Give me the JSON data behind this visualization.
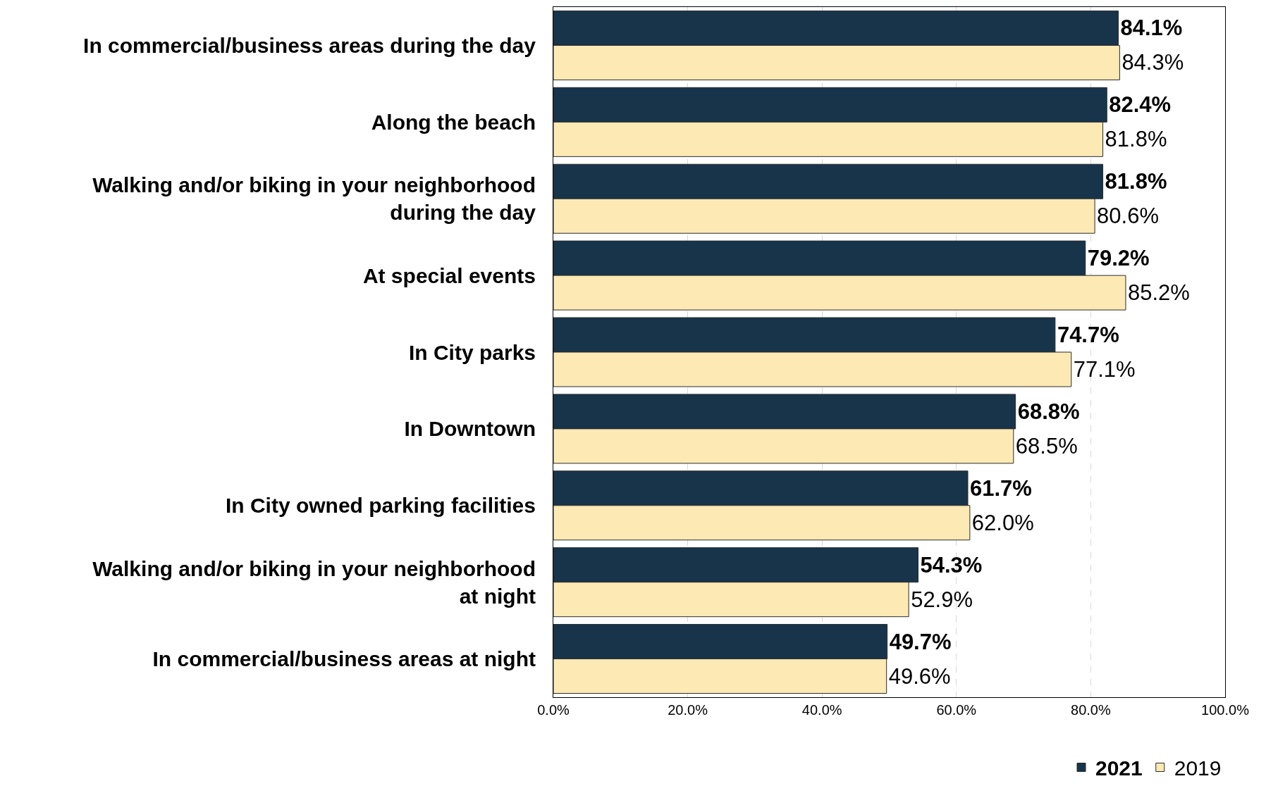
{
  "chart_data": {
    "type": "bar",
    "orientation": "horizontal",
    "categories": [
      "In commercial/business areas during the day",
      "Along the beach",
      "Walking and/or biking in your neighborhood\nduring the day",
      "At special events",
      "In City parks",
      "In Downtown",
      "In City owned parking facilities",
      "Walking and/or biking in your neighborhood\nat night",
      "In commercial/business areas at night"
    ],
    "series": [
      {
        "name": "2021",
        "color": "#17344b",
        "values": [
          84.1,
          82.4,
          81.8,
          79.2,
          74.7,
          68.8,
          61.7,
          54.3,
          49.7
        ],
        "value_labels": [
          "84.1%",
          "82.4%",
          "81.8%",
          "79.2%",
          "74.7%",
          "68.8%",
          "61.7%",
          "54.3%",
          "49.7%"
        ]
      },
      {
        "name": "2019",
        "color": "#fde9b4",
        "values": [
          84.3,
          81.8,
          80.6,
          85.2,
          77.1,
          68.5,
          62.0,
          52.9,
          49.6
        ],
        "value_labels": [
          "84.3%",
          "81.8%",
          "80.6%",
          "85.2%",
          "77.1%",
          "68.5%",
          "62.0%",
          "52.9%",
          "49.6%"
        ]
      }
    ],
    "xlim": [
      0,
      100
    ],
    "xticks": [
      {
        "value": 0,
        "label": "0.0%"
      },
      {
        "value": 20,
        "label": "20.0%"
      },
      {
        "value": 40,
        "label": "40.0%"
      },
      {
        "value": 60,
        "label": "60.0%"
      },
      {
        "value": 80,
        "label": "80.0%"
      },
      {
        "value": 100,
        "label": "100.0%"
      }
    ],
    "grid": "x",
    "legend": "bottom right"
  }
}
